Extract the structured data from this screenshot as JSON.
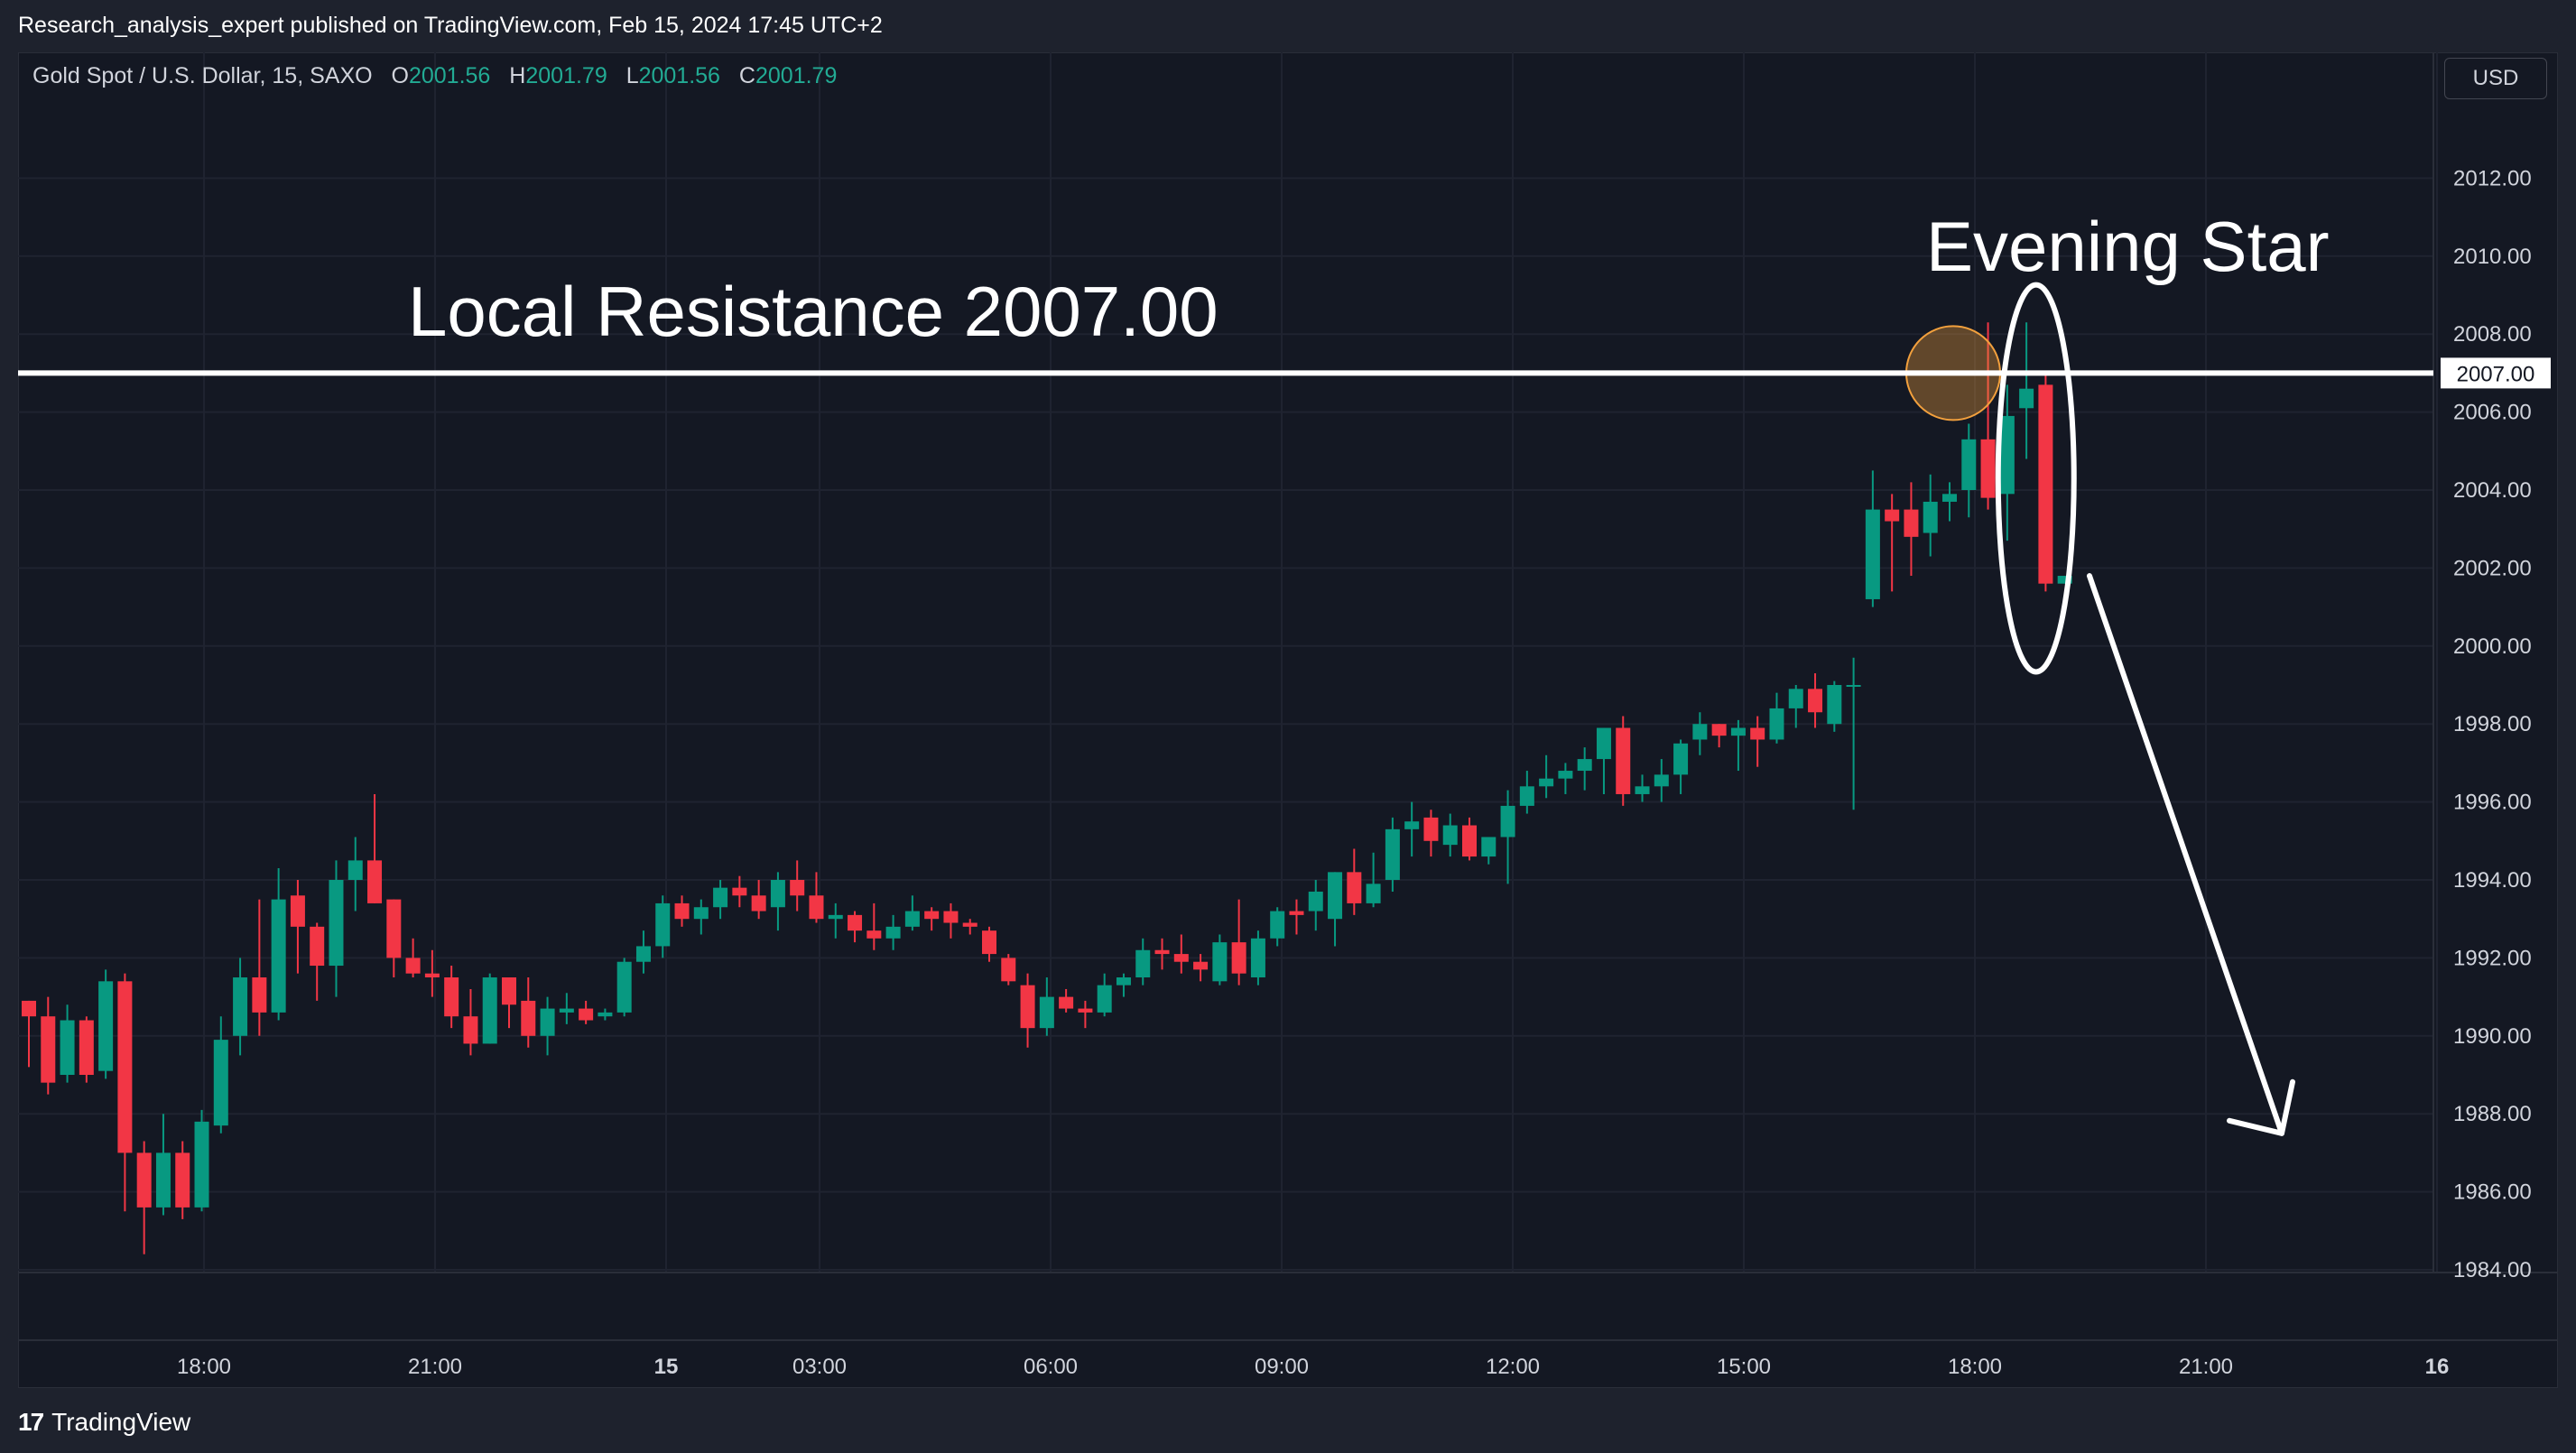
{
  "publish_line": "Research_analysis_expert published on TradingView.com, Feb 15, 2024 17:45 UTC+2",
  "legend": {
    "symbol": "Gold Spot / U.S. Dollar, 15, SAXO",
    "open_label": "O",
    "open": "2001.56",
    "high_label": "H",
    "high": "2001.79",
    "low_label": "L",
    "low": "2001.56",
    "close_label": "C",
    "close": "2001.79"
  },
  "currency_button": "USD",
  "footer": {
    "logo_text": "17",
    "brand": "TradingView"
  },
  "colors": {
    "up": "#089981",
    "down": "#f23645",
    "background": "#141823",
    "grid": "#1f2330",
    "text": "#d1d4dc",
    "annotation": "#ffffff",
    "highlight_circle": "#f2a03d"
  },
  "chart_data": {
    "type": "candlestick",
    "symbol": "Gold Spot / U.S. Dollar",
    "interval": "15",
    "y_axis": {
      "range": [
        1984,
        2014
      ],
      "ticks": [
        "1984.00",
        "1986.00",
        "1988.00",
        "1990.00",
        "1992.00",
        "1994.00",
        "1996.00",
        "1998.00",
        "2000.00",
        "2002.00",
        "2004.00",
        "2006.00",
        "2008.00",
        "2010.00",
        "2012.00"
      ]
    },
    "x_axis": {
      "ticks": [
        "18:00",
        "21:00",
        "15",
        "03:00",
        "06:00",
        "09:00",
        "12:00",
        "15:00",
        "18:00",
        "21:00",
        "16"
      ]
    },
    "candles": [
      [
        1990.9,
        1990.9,
        1989.2,
        1990.5
      ],
      [
        1990.5,
        1991.0,
        1988.5,
        1988.8
      ],
      [
        1989.0,
        1990.8,
        1988.8,
        1990.4
      ],
      [
        1990.4,
        1990.5,
        1988.8,
        1989.0
      ],
      [
        1989.1,
        1991.7,
        1988.9,
        1991.4
      ],
      [
        1991.4,
        1991.6,
        1985.5,
        1987.0
      ],
      [
        1987.0,
        1987.3,
        1984.4,
        1985.6
      ],
      [
        1985.6,
        1988.0,
        1985.4,
        1987.0
      ],
      [
        1987.0,
        1987.3,
        1985.3,
        1985.6
      ],
      [
        1985.6,
        1988.1,
        1985.5,
        1987.8
      ],
      [
        1987.7,
        1990.5,
        1987.5,
        1989.9
      ],
      [
        1990.0,
        1992.0,
        1989.5,
        1991.5
      ],
      [
        1991.5,
        1993.5,
        1990.0,
        1990.6
      ],
      [
        1990.6,
        1994.3,
        1990.4,
        1993.5
      ],
      [
        1993.6,
        1994.0,
        1991.6,
        1992.8
      ],
      [
        1992.8,
        1992.9,
        1990.9,
        1991.8
      ],
      [
        1991.8,
        1994.5,
        1991.0,
        1994.0
      ],
      [
        1994.0,
        1995.1,
        1993.2,
        1994.5
      ],
      [
        1994.5,
        1996.2,
        1993.4,
        1993.4
      ],
      [
        1993.5,
        1993.5,
        1991.5,
        1992.0
      ],
      [
        1992.0,
        1992.5,
        1991.5,
        1991.6
      ],
      [
        1991.6,
        1992.2,
        1991.0,
        1991.5
      ],
      [
        1991.5,
        1991.8,
        1990.2,
        1990.5
      ],
      [
        1990.5,
        1991.2,
        1989.5,
        1989.8
      ],
      [
        1989.8,
        1991.6,
        1989.8,
        1991.5
      ],
      [
        1991.5,
        1991.5,
        1990.2,
        1990.8
      ],
      [
        1990.9,
        1991.5,
        1989.7,
        1990.0
      ],
      [
        1990.0,
        1991.0,
        1989.5,
        1990.7
      ],
      [
        1990.6,
        1991.1,
        1990.3,
        1990.7
      ],
      [
        1990.7,
        1990.9,
        1990.3,
        1990.4
      ],
      [
        1990.5,
        1990.7,
        1990.4,
        1990.6
      ],
      [
        1990.6,
        1992.0,
        1990.5,
        1991.9
      ],
      [
        1991.9,
        1992.7,
        1991.6,
        1992.3
      ],
      [
        1992.3,
        1993.6,
        1992.0,
        1993.4
      ],
      [
        1993.4,
        1993.6,
        1992.8,
        1993.0
      ],
      [
        1993.0,
        1993.5,
        1992.6,
        1993.3
      ],
      [
        1993.3,
        1994.0,
        1993.0,
        1993.8
      ],
      [
        1993.8,
        1994.1,
        1993.3,
        1993.6
      ],
      [
        1993.6,
        1994.0,
        1993.0,
        1993.2
      ],
      [
        1993.3,
        1994.2,
        1992.7,
        1994.0
      ],
      [
        1994.0,
        1994.5,
        1993.2,
        1993.6
      ],
      [
        1993.6,
        1994.2,
        1992.9,
        1993.0
      ],
      [
        1993.0,
        1993.4,
        1992.5,
        1993.1
      ],
      [
        1993.1,
        1993.2,
        1992.4,
        1992.7
      ],
      [
        1992.7,
        1993.4,
        1992.2,
        1992.5
      ],
      [
        1992.5,
        1993.1,
        1992.2,
        1992.8
      ],
      [
        1992.8,
        1993.6,
        1992.7,
        1993.2
      ],
      [
        1993.2,
        1993.3,
        1992.7,
        1993.0
      ],
      [
        1993.2,
        1993.4,
        1992.5,
        1992.9
      ],
      [
        1992.9,
        1993.0,
        1992.6,
        1992.8
      ],
      [
        1992.7,
        1992.8,
        1991.9,
        1992.1
      ],
      [
        1992.0,
        1992.1,
        1991.3,
        1991.4
      ],
      [
        1991.3,
        1991.6,
        1989.7,
        1990.2
      ],
      [
        1990.2,
        1991.5,
        1990.0,
        1991.0
      ],
      [
        1991.0,
        1991.2,
        1990.6,
        1990.7
      ],
      [
        1990.7,
        1990.9,
        1990.2,
        1990.6
      ],
      [
        1990.6,
        1991.6,
        1990.5,
        1991.3
      ],
      [
        1991.3,
        1991.6,
        1991.0,
        1991.5
      ],
      [
        1991.5,
        1992.5,
        1991.3,
        1992.2
      ],
      [
        1992.2,
        1992.5,
        1991.7,
        1992.1
      ],
      [
        1992.1,
        1992.6,
        1991.6,
        1991.9
      ],
      [
        1991.9,
        1992.1,
        1991.4,
        1991.7
      ],
      [
        1991.4,
        1992.6,
        1991.3,
        1992.4
      ],
      [
        1992.4,
        1993.5,
        1991.3,
        1991.6
      ],
      [
        1991.5,
        1992.7,
        1991.3,
        1992.5
      ],
      [
        1992.5,
        1993.3,
        1992.3,
        1993.2
      ],
      [
        1993.2,
        1993.5,
        1992.6,
        1993.1
      ],
      [
        1993.2,
        1994.0,
        1992.7,
        1993.7
      ],
      [
        1993.0,
        1994.2,
        1992.3,
        1994.2
      ],
      [
        1994.2,
        1994.8,
        1993.1,
        1993.4
      ],
      [
        1993.4,
        1994.7,
        1993.3,
        1993.9
      ],
      [
        1994.0,
        1995.6,
        1993.7,
        1995.3
      ],
      [
        1995.3,
        1996.0,
        1994.6,
        1995.5
      ],
      [
        1995.6,
        1995.8,
        1994.6,
        1995.0
      ],
      [
        1994.9,
        1995.7,
        1994.6,
        1995.4
      ],
      [
        1995.4,
        1995.6,
        1994.5,
        1994.6
      ],
      [
        1994.6,
        1995.1,
        1994.4,
        1995.1
      ],
      [
        1995.1,
        1996.3,
        1993.9,
        1995.9
      ],
      [
        1995.9,
        1996.8,
        1995.7,
        1996.4
      ],
      [
        1996.4,
        1997.2,
        1996.1,
        1996.6
      ],
      [
        1996.6,
        1997.0,
        1996.2,
        1996.8
      ],
      [
        1996.8,
        1997.4,
        1996.3,
        1997.1
      ],
      [
        1997.1,
        1997.9,
        1996.2,
        1997.9
      ],
      [
        1997.9,
        1998.2,
        1995.9,
        1996.2
      ],
      [
        1996.2,
        1996.7,
        1996.0,
        1996.4
      ],
      [
        1996.4,
        1997.1,
        1996.0,
        1996.7
      ],
      [
        1996.7,
        1997.6,
        1996.2,
        1997.5
      ],
      [
        1997.6,
        1998.3,
        1997.2,
        1998.0
      ],
      [
        1998.0,
        1998.0,
        1997.4,
        1997.7
      ],
      [
        1997.7,
        1998.1,
        1996.8,
        1997.9
      ],
      [
        1997.9,
        1998.2,
        1996.9,
        1997.6
      ],
      [
        1997.6,
        1998.8,
        1997.5,
        1998.4
      ],
      [
        1998.4,
        1999.0,
        1997.9,
        1998.9
      ],
      [
        1998.9,
        1999.3,
        1997.9,
        1998.3
      ],
      [
        1998.0,
        1999.1,
        1997.8,
        1999.0
      ],
      [
        1999.0,
        1999.7,
        1995.8,
        1999.0
      ],
      [
        2001.2,
        2004.5,
        2001.0,
        2003.5
      ],
      [
        2003.5,
        2003.9,
        2001.4,
        2003.2
      ],
      [
        2003.5,
        2004.2,
        2001.8,
        2002.8
      ],
      [
        2002.9,
        2004.4,
        2002.3,
        2003.7
      ],
      [
        2003.7,
        2004.2,
        2003.2,
        2003.9
      ],
      [
        2004.0,
        2005.7,
        2003.3,
        2005.3
      ],
      [
        2005.3,
        2008.3,
        2003.5,
        2003.8
      ],
      [
        2003.9,
        2006.7,
        2002.7,
        2005.9
      ],
      [
        2006.1,
        2008.3,
        2004.8,
        2006.6
      ],
      [
        2006.7,
        2007.0,
        2001.4,
        2001.6
      ],
      [
        2001.6,
        2001.8,
        2001.6,
        2001.8
      ]
    ],
    "horizontal_line": {
      "price": 2007.0,
      "label": "2007.00"
    },
    "annotations": [
      "Local Resistance 2007.00",
      "Evening Star"
    ],
    "highlight_circle_price": 2007.0,
    "forecast_arrow": {
      "from_price": 2001.8,
      "to_price": 1987.5,
      "direction": "down"
    }
  }
}
